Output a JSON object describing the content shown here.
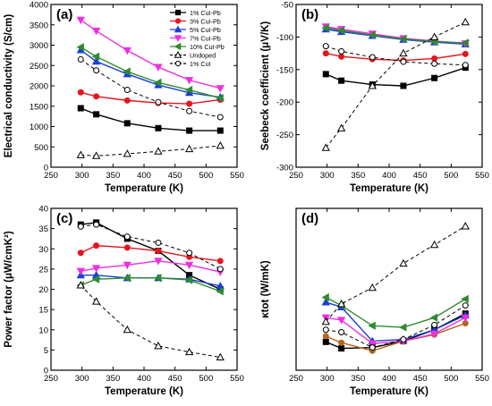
{
  "chart_data": [
    {
      "id": "a",
      "type": "line",
      "panel_label": "(a)",
      "xlabel": "Temperature (K)",
      "ylabel": "Electrical conductivity (S/cm)",
      "xlim": [
        250,
        550
      ],
      "ylim": [
        0,
        4000
      ],
      "xticks": [
        250,
        300,
        350,
        400,
        450,
        500,
        550
      ],
      "yticks": [
        0,
        500,
        1000,
        1500,
        2000,
        2500,
        3000,
        3500,
        4000
      ],
      "legend": "top-right",
      "series": [
        {
          "name": "1% CuI-Pb",
          "color": "#000000",
          "marker": "square",
          "dash": false,
          "x": [
            298,
            323,
            373,
            423,
            473,
            523
          ],
          "y": [
            1450,
            1300,
            1080,
            960,
            900,
            900
          ]
        },
        {
          "name": "3% CuI-Pb",
          "color": "#e8141c",
          "marker": "circle",
          "dash": false,
          "x": [
            298,
            323,
            373,
            423,
            473,
            523
          ],
          "y": [
            1840,
            1740,
            1640,
            1580,
            1560,
            1660
          ]
        },
        {
          "name": "5% CuI-Pb",
          "color": "#1a3fd6",
          "marker": "triangle-up",
          "dash": false,
          "x": [
            298,
            323,
            373,
            423,
            473,
            523
          ],
          "y": [
            2880,
            2600,
            2290,
            2020,
            1830,
            1720
          ]
        },
        {
          "name": "7% CuI-Pb",
          "color": "#ee2ee0",
          "marker": "triangle-down",
          "dash": false,
          "x": [
            298,
            323,
            373,
            423,
            473,
            523
          ],
          "y": [
            3620,
            3350,
            2870,
            2460,
            2140,
            1940
          ]
        },
        {
          "name": "10% CuI-Pb",
          "color": "#2e8b2e",
          "marker": "triangle-left",
          "dash": false,
          "x": [
            298,
            323,
            373,
            423,
            473,
            523
          ],
          "y": [
            2950,
            2720,
            2350,
            2080,
            1900,
            1700
          ]
        },
        {
          "name": "Undoped",
          "color": "#000000",
          "marker": "open-triangle",
          "dash": true,
          "x": [
            298,
            323,
            373,
            423,
            473,
            523
          ],
          "y": [
            300,
            280,
            330,
            390,
            450,
            530
          ]
        },
        {
          "name": "1% CuI",
          "color": "#000000",
          "marker": "open-circle",
          "dash": true,
          "x": [
            298,
            323,
            373,
            423,
            473,
            523
          ],
          "y": [
            2650,
            2380,
            1900,
            1600,
            1380,
            1230
          ]
        }
      ]
    },
    {
      "id": "b",
      "type": "line",
      "panel_label": "(b)",
      "xlabel": "Temperature (K)",
      "ylabel": "Seebeck coefficient (μV/K)",
      "xlim": [
        250,
        550
      ],
      "ylim": [
        -300,
        -50
      ],
      "xticks": [
        250,
        300,
        350,
        400,
        450,
        500,
        550
      ],
      "yticks": [
        -300,
        -250,
        -200,
        -150,
        -100,
        -50
      ],
      "series": [
        {
          "name": "1% CuI-Pb",
          "color": "#000000",
          "marker": "square",
          "dash": false,
          "x": [
            298,
            323,
            373,
            423,
            473,
            523
          ],
          "y": [
            -157,
            -167,
            -173,
            -175,
            -163,
            -147
          ]
        },
        {
          "name": "3% CuI-Pb",
          "color": "#e8141c",
          "marker": "circle",
          "dash": false,
          "x": [
            298,
            323,
            373,
            423,
            473,
            523
          ],
          "y": [
            -125,
            -130,
            -134,
            -136,
            -133,
            -126
          ]
        },
        {
          "name": "5% CuI-Pb",
          "color": "#1a3fd6",
          "marker": "triangle-up",
          "dash": false,
          "x": [
            298,
            323,
            373,
            423,
            473,
            523
          ],
          "y": [
            -88,
            -92,
            -98,
            -104,
            -108,
            -111
          ]
        },
        {
          "name": "7% CuI-Pb",
          "color": "#ee2ee0",
          "marker": "triangle-down",
          "dash": false,
          "x": [
            298,
            323,
            373,
            423,
            473,
            523
          ],
          "y": [
            -84,
            -88,
            -95,
            -102,
            -106,
            -110
          ]
        },
        {
          "name": "10% CuI-Pb",
          "color": "#2e8b2e",
          "marker": "triangle-left",
          "dash": false,
          "x": [
            298,
            323,
            373,
            423,
            473,
            523
          ],
          "y": [
            -86,
            -90,
            -97,
            -103,
            -107,
            -109
          ]
        },
        {
          "name": "Undoped",
          "color": "#000000",
          "marker": "open-triangle",
          "dash": true,
          "x": [
            298,
            323,
            373,
            423,
            473,
            523
          ],
          "y": [
            -270,
            -240,
            -175,
            -125,
            -100,
            -77
          ]
        },
        {
          "name": "1% CuI",
          "color": "#000000",
          "marker": "open-circle",
          "dash": true,
          "x": [
            298,
            323,
            373,
            423,
            473,
            523
          ],
          "y": [
            -114,
            -122,
            -131,
            -138,
            -141,
            -143
          ]
        }
      ]
    },
    {
      "id": "c",
      "type": "line",
      "panel_label": "(c)",
      "xlabel": "Temperature (K)",
      "ylabel": "Power factor (μW/cmK²)",
      "xlim": [
        250,
        550
      ],
      "ylim": [
        0,
        40
      ],
      "xticks": [
        250,
        300,
        350,
        400,
        450,
        500,
        550
      ],
      "yticks": [
        0,
        5,
        10,
        15,
        20,
        25,
        30,
        35,
        40
      ],
      "series": [
        {
          "name": "1% CuI-Pb",
          "color": "#000000",
          "marker": "square",
          "dash": false,
          "x": [
            298,
            323,
            373,
            423,
            473,
            523
          ],
          "y": [
            36.0,
            36.5,
            32.5,
            29.5,
            23.5,
            20.0
          ]
        },
        {
          "name": "3% CuI-Pb",
          "color": "#e8141c",
          "marker": "circle",
          "dash": false,
          "x": [
            298,
            323,
            373,
            423,
            473,
            523
          ],
          "y": [
            29.0,
            30.8,
            30.3,
            29.5,
            28.0,
            27.0
          ]
        },
        {
          "name": "5% CuI-Pb",
          "color": "#1a3fd6",
          "marker": "triangle-up",
          "dash": false,
          "x": [
            298,
            323,
            373,
            423,
            473,
            523
          ],
          "y": [
            23.5,
            23.5,
            22.8,
            22.8,
            22.5,
            20.8
          ]
        },
        {
          "name": "7% CuI-Pb",
          "color": "#ee2ee0",
          "marker": "triangle-down",
          "dash": false,
          "x": [
            298,
            323,
            373,
            423,
            473,
            523
          ],
          "y": [
            24.5,
            25.2,
            26.0,
            27.0,
            26.0,
            24.3
          ]
        },
        {
          "name": "10% CuI-Pb",
          "color": "#2e8b2e",
          "marker": "triangle-left",
          "dash": false,
          "x": [
            298,
            323,
            373,
            423,
            473,
            523
          ],
          "y": [
            21.0,
            22.5,
            22.8,
            22.8,
            22.3,
            19.5
          ]
        },
        {
          "name": "Undoped",
          "color": "#000000",
          "marker": "open-triangle",
          "dash": true,
          "x": [
            298,
            323,
            373,
            423,
            473,
            523
          ],
          "y": [
            21.0,
            17.0,
            10.0,
            6.0,
            4.5,
            3.2
          ]
        },
        {
          "name": "1% CuI",
          "color": "#000000",
          "marker": "open-circle",
          "dash": true,
          "x": [
            298,
            323,
            373,
            423,
            473,
            523
          ],
          "y": [
            35.5,
            36.0,
            33.0,
            31.5,
            29.0,
            25.0
          ]
        }
      ]
    },
    {
      "id": "d",
      "type": "line",
      "panel_label": "(d)",
      "xlabel": "Temperature (K)",
      "ylabel": "κtot (W/mK)",
      "xlim": [
        250,
        550
      ],
      "ylim": [
        1.0,
        3.0
      ],
      "xticks": [
        250,
        300,
        350,
        400,
        450,
        500,
        550
      ],
      "yticks": [],
      "series": [
        {
          "name": "1% CuI-Pb",
          "color": "#000000",
          "marker": "square",
          "dash": false,
          "x": [
            298,
            323,
            373,
            423,
            473,
            523
          ],
          "y": [
            1.35,
            1.27,
            1.28,
            1.36,
            1.5,
            1.7
          ]
        },
        {
          "name": "3% CuI-Pb",
          "color": "#b5651d",
          "marker": "circle",
          "dash": false,
          "x": [
            298,
            323,
            373,
            423,
            473,
            523
          ],
          "y": [
            1.42,
            1.34,
            1.24,
            1.36,
            1.44,
            1.58
          ]
        },
        {
          "name": "5% CuI-Pb",
          "color": "#1a3fd6",
          "marker": "triangle-up",
          "dash": false,
          "x": [
            298,
            323,
            373,
            423,
            473,
            523
          ],
          "y": [
            1.84,
            1.78,
            1.36,
            1.38,
            1.5,
            1.68
          ]
        },
        {
          "name": "7% CuI-Pb",
          "color": "#ee2ee0",
          "marker": "triangle-down",
          "dash": false,
          "x": [
            298,
            323,
            373,
            423,
            473,
            523
          ],
          "y": [
            1.65,
            1.62,
            1.33,
            1.36,
            1.45,
            1.65
          ]
        },
        {
          "name": "10% CuI-Pb",
          "color": "#2e8b2e",
          "marker": "triangle-left",
          "dash": false,
          "x": [
            298,
            323,
            373,
            423,
            473,
            523
          ],
          "y": [
            1.9,
            1.8,
            1.55,
            1.53,
            1.65,
            1.88
          ]
        },
        {
          "name": "Undoped",
          "color": "#000000",
          "marker": "open-triangle",
          "dash": true,
          "x": [
            298,
            323,
            373,
            423,
            473,
            523
          ],
          "y": [
            1.6,
            1.82,
            2.02,
            2.32,
            2.55,
            2.78
          ]
        },
        {
          "name": "1% CuI",
          "color": "#000000",
          "marker": "open-circle",
          "dash": true,
          "x": [
            298,
            323,
            373,
            423,
            473,
            523
          ],
          "y": [
            1.5,
            1.47,
            1.28,
            1.38,
            1.56,
            1.8
          ]
        }
      ]
    }
  ]
}
